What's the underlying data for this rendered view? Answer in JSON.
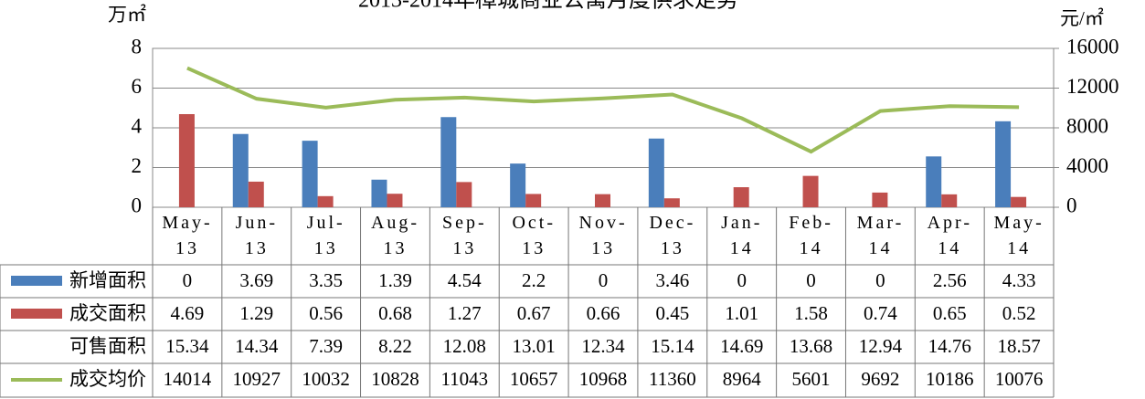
{
  "chart_data": {
    "type": "bar",
    "title": "2013-2014年樟城商业公寓月度供求走势",
    "ylabel": "万㎡",
    "y2label": "元/㎡",
    "categories": [
      "May-13",
      "Jun-13",
      "Jul-13",
      "Aug-13",
      "Sep-13",
      "Oct-13",
      "Nov-13",
      "Dec-13",
      "Jan-14",
      "Feb-14",
      "Mar-14",
      "Apr-14",
      "May-14"
    ],
    "ylim": [
      0,
      8
    ],
    "yticks": [
      0,
      2,
      4,
      6,
      8
    ],
    "y2lim": [
      0,
      16000
    ],
    "y2ticks": [
      0,
      4000,
      8000,
      12000,
      16000
    ],
    "series": [
      {
        "name": "新增面积",
        "type": "bar",
        "color": "#4a7ebb",
        "values": [
          0,
          3.69,
          3.35,
          1.39,
          4.54,
          2.2,
          0,
          3.46,
          0,
          0,
          0,
          2.56,
          4.33
        ]
      },
      {
        "name": "成交面积",
        "type": "bar",
        "color": "#c0504d",
        "values": [
          4.69,
          1.29,
          0.56,
          0.68,
          1.27,
          0.67,
          0.66,
          0.45,
          1.01,
          1.58,
          0.74,
          0.65,
          0.52
        ]
      },
      {
        "name": "可售面积",
        "type": "table",
        "values": [
          15.34,
          14.34,
          7.39,
          8.22,
          12.08,
          13.01,
          12.34,
          15.14,
          14.69,
          13.68,
          12.94,
          14.76,
          18.57
        ]
      },
      {
        "name": "成交均价",
        "type": "line",
        "axis": "y2",
        "color": "#9bbb59",
        "values": [
          14014,
          10927,
          10032,
          10828,
          11043,
          10657,
          10968,
          11360,
          8964,
          5601,
          9692,
          10186,
          10076
        ]
      }
    ]
  }
}
